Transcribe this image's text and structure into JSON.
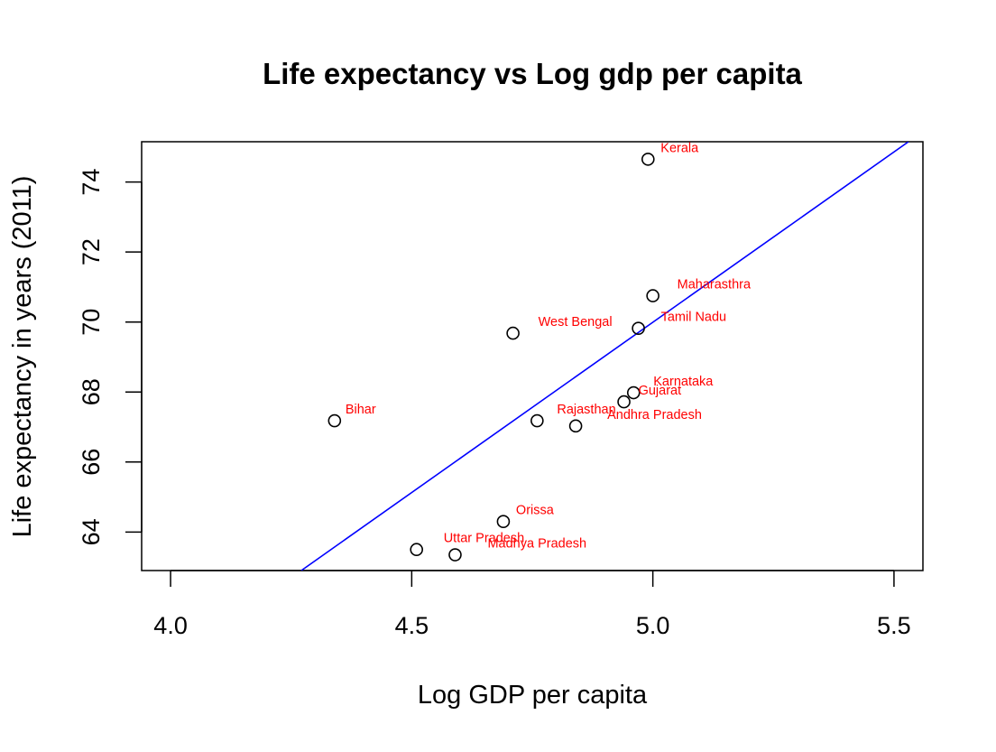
{
  "chart_data": {
    "type": "scatter",
    "title": "Life expectancy vs Log gdp per capita",
    "xlabel": "Log GDP per capita",
    "ylabel": "Life expectancy in years (2011)",
    "xlim": [
      3.94,
      5.56
    ],
    "ylim": [
      62.9,
      75.15
    ],
    "xticks": [
      4.0,
      4.5,
      5.0,
      5.5
    ],
    "xtick_labels": [
      "4.0",
      "4.5",
      "5.0",
      "5.5"
    ],
    "yticks": [
      64,
      66,
      68,
      70,
      72,
      74
    ],
    "ytick_labels": [
      "64",
      "66",
      "68",
      "70",
      "72",
      "74"
    ],
    "grid": false,
    "point_label_color": "#ff0000",
    "fit_line_color": "#0000ff",
    "points": [
      {
        "label": "Kerala",
        "x": 4.99,
        "y": 74.65,
        "dx": 14,
        "dy": -8
      },
      {
        "label": "Maharasthra",
        "x": 5.0,
        "y": 70.75,
        "dx": 27,
        "dy": -8
      },
      {
        "label": "Tamil Nadu",
        "x": 4.97,
        "y": 69.82,
        "dx": 25,
        "dy": -8
      },
      {
        "label": "West Bengal",
        "x": 4.71,
        "y": 69.68,
        "dx": 28,
        "dy": -8
      },
      {
        "label": "Karnataka",
        "x": 4.96,
        "y": 67.98,
        "dx": 22,
        "dy": -8
      },
      {
        "label": "Gujarat",
        "x": 4.94,
        "y": 67.72,
        "dx": 16,
        "dy": -8
      },
      {
        "label": "Bihar",
        "x": 4.34,
        "y": 67.18,
        "dx": 12,
        "dy": -8
      },
      {
        "label": "Rajasthan",
        "x": 4.76,
        "y": 67.18,
        "dx": 22,
        "dy": -8
      },
      {
        "label": "Andhra Pradesh",
        "x": 4.84,
        "y": 67.03,
        "dx": 35,
        "dy": -8
      },
      {
        "label": "Orissa",
        "x": 4.69,
        "y": 64.3,
        "dx": 14,
        "dy": -8
      },
      {
        "label": "Uttar Pradesh",
        "x": 4.51,
        "y": 63.5,
        "dx": 30,
        "dy": -8
      },
      {
        "label": "Madhya Pradesh",
        "x": 4.59,
        "y": 63.35,
        "dx": 36,
        "dy": -8
      }
    ],
    "fit_line": {
      "x1": 4.271,
      "y1": 62.9,
      "x2": 5.53,
      "y2": 75.15
    }
  }
}
